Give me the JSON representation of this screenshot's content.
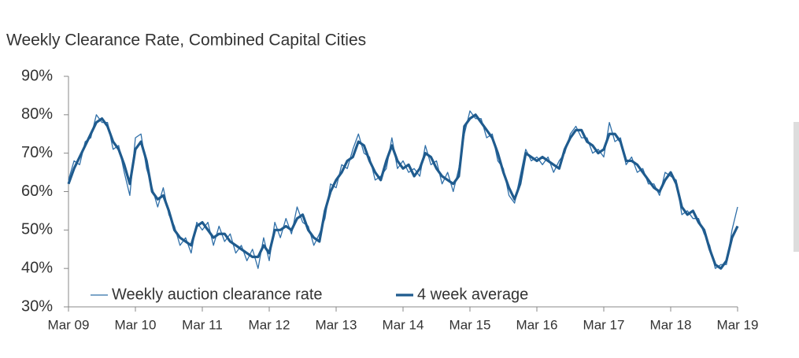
{
  "chart_data": {
    "type": "line",
    "title": "Weekly Clearance Rate, Combined Capital Cities",
    "categories": [
      "Mar 09",
      null,
      null,
      null,
      null,
      null,
      null,
      null,
      null,
      null,
      null,
      null,
      "Mar 10",
      null,
      null,
      null,
      null,
      null,
      null,
      null,
      null,
      null,
      null,
      null,
      "Mar 11",
      null,
      null,
      null,
      null,
      null,
      null,
      null,
      null,
      null,
      null,
      null,
      "Mar 12",
      null,
      null,
      null,
      null,
      null,
      null,
      null,
      null,
      null,
      null,
      null,
      "Mar 13",
      null,
      null,
      null,
      null,
      null,
      null,
      null,
      null,
      null,
      null,
      null,
      "Mar 14",
      null,
      null,
      null,
      null,
      null,
      null,
      null,
      null,
      null,
      null,
      null,
      "Mar 15",
      null,
      null,
      null,
      null,
      null,
      null,
      null,
      null,
      null,
      null,
      null,
      "Mar 16",
      null,
      null,
      null,
      null,
      null,
      null,
      null,
      null,
      null,
      null,
      null,
      "Mar 17",
      null,
      null,
      null,
      null,
      null,
      null,
      null,
      null,
      null,
      null,
      null,
      "Mar 18",
      null,
      null,
      null,
      null,
      null,
      null,
      null,
      null,
      null,
      null,
      null,
      "Mar 19"
    ],
    "series": [
      {
        "name": "Weekly auction clearance rate",
        "color": "#2f6fa8",
        "width": 1.3,
        "values": [
          63,
          68,
          67,
          73,
          74,
          80,
          78,
          78,
          71,
          72,
          65,
          59,
          74,
          75,
          66,
          61,
          56,
          61,
          54,
          51,
          46,
          48,
          44,
          52,
          50,
          52,
          46,
          51,
          47,
          49,
          44,
          46,
          42,
          45,
          40,
          48,
          42,
          52,
          48,
          53,
          49,
          56,
          52,
          51,
          46,
          49,
          53,
          62,
          61,
          67,
          66,
          71,
          75,
          70,
          69,
          63,
          64,
          66,
          74,
          66,
          68,
          65,
          66,
          64,
          72,
          67,
          68,
          62,
          65,
          60,
          66,
          75,
          81,
          79,
          79,
          74,
          75,
          68,
          66,
          59,
          57,
          64,
          71,
          68,
          69,
          67,
          69,
          65,
          68,
          70,
          75,
          77,
          74,
          74,
          70,
          71,
          69,
          78,
          73,
          74,
          67,
          69,
          65,
          66,
          62,
          62,
          59,
          65,
          64,
          63,
          54,
          55,
          53,
          53,
          49,
          46,
          40,
          41,
          41,
          50,
          56
        ]
      },
      {
        "name": "4 week average",
        "color": "#1f5b8e",
        "width": 3.2,
        "values": [
          62,
          66,
          69,
          72,
          75,
          78,
          79,
          77,
          73,
          71,
          67,
          62,
          71,
          73,
          68,
          60,
          58,
          59,
          55,
          50,
          48,
          47,
          46,
          51,
          52,
          50,
          48,
          49,
          49,
          47,
          46,
          45,
          44,
          43,
          43,
          46,
          44,
          50,
          50,
          51,
          50,
          53,
          54,
          50,
          48,
          47,
          55,
          60,
          63,
          65,
          68,
          69,
          73,
          72,
          68,
          65,
          63,
          68,
          72,
          68,
          66,
          67,
          64,
          66,
          70,
          69,
          66,
          64,
          63,
          62,
          64,
          77,
          79,
          80,
          78,
          76,
          74,
          70,
          65,
          61,
          58,
          62,
          70,
          69,
          68,
          69,
          68,
          67,
          66,
          71,
          74,
          76,
          76,
          73,
          72,
          70,
          71,
          75,
          75,
          73,
          68,
          68,
          67,
          65,
          63,
          61,
          60,
          63,
          65,
          62,
          56,
          54,
          55,
          52,
          50,
          45,
          41,
          40,
          42,
          48,
          51
        ]
      }
    ],
    "ylim": [
      30,
      90
    ],
    "yticks": [
      {
        "value": 30,
        "label": "30%"
      },
      {
        "value": 40,
        "label": "40%"
      },
      {
        "value": 50,
        "label": "50%"
      },
      {
        "value": 60,
        "label": "60%"
      },
      {
        "value": 70,
        "label": "70%"
      },
      {
        "value": 80,
        "label": "80%"
      },
      {
        "value": 90,
        "label": "90%"
      }
    ],
    "legend": "bottom-left"
  }
}
